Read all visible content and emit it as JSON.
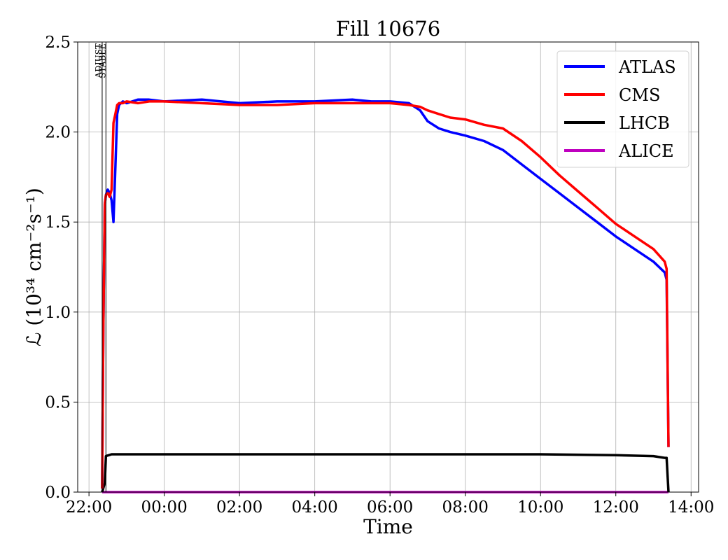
{
  "chart_data": {
    "type": "line",
    "title": "Fill 10676",
    "xlabel": "Time",
    "ylabel": "ℒ (10³⁴ cm⁻²s⁻¹)",
    "x_unit": "hours since 22:00",
    "xlim": [
      -0.3,
      16.2
    ],
    "ylim": [
      0,
      2.5
    ],
    "x_ticks": [
      {
        "label": "22:00",
        "value": 0
      },
      {
        "label": "00:00",
        "value": 2
      },
      {
        "label": "02:00",
        "value": 4
      },
      {
        "label": "04:00",
        "value": 6
      },
      {
        "label": "06:00",
        "value": 8
      },
      {
        "label": "08:00",
        "value": 10
      },
      {
        "label": "10:00",
        "value": 12
      },
      {
        "label": "12:00",
        "value": 14
      },
      {
        "label": "14:00",
        "value": 16
      }
    ],
    "y_ticks": [
      {
        "label": "0.0",
        "value": 0
      },
      {
        "label": "0.5",
        "value": 0.5
      },
      {
        "label": "1.0",
        "value": 1.0
      },
      {
        "label": "1.5",
        "value": 1.5
      },
      {
        "label": "2.0",
        "value": 2.0
      },
      {
        "label": "2.5",
        "value": 2.5
      }
    ],
    "grid": true,
    "legend_position": "top-right",
    "markers": [
      {
        "label": "ADJUST",
        "x": 0.35
      },
      {
        "label": "STABLE",
        "x": 0.45
      }
    ],
    "series": [
      {
        "name": "ATLAS",
        "color": "#0000ff",
        "x": [
          0.35,
          0.38,
          0.42,
          0.45,
          0.5,
          0.55,
          0.6,
          0.65,
          0.7,
          0.75,
          0.8,
          0.9,
          1.0,
          1.3,
          1.6,
          2.0,
          3.0,
          4.0,
          5.0,
          6.0,
          7.0,
          7.5,
          8.0,
          8.5,
          8.8,
          9.0,
          9.3,
          9.6,
          10.0,
          10.5,
          11.0,
          11.5,
          12.0,
          12.5,
          13.0,
          13.5,
          14.0,
          14.5,
          15.0,
          15.3,
          15.35,
          15.4
        ],
        "y": [
          0.02,
          0.9,
          1.6,
          1.65,
          1.68,
          1.66,
          1.62,
          1.5,
          1.8,
          2.1,
          2.15,
          2.17,
          2.16,
          2.18,
          2.18,
          2.17,
          2.18,
          2.16,
          2.17,
          2.17,
          2.18,
          2.17,
          2.17,
          2.16,
          2.12,
          2.06,
          2.02,
          2.0,
          1.98,
          1.95,
          1.9,
          1.82,
          1.74,
          1.66,
          1.58,
          1.5,
          1.42,
          1.35,
          1.28,
          1.22,
          1.18,
          0.25
        ]
      },
      {
        "name": "CMS",
        "color": "#ff0000",
        "x": [
          0.35,
          0.38,
          0.42,
          0.45,
          0.5,
          0.55,
          0.6,
          0.65,
          0.7,
          0.75,
          0.8,
          0.9,
          1.0,
          1.3,
          1.6,
          2.0,
          3.0,
          4.0,
          5.0,
          6.0,
          7.0,
          7.5,
          8.0,
          8.5,
          8.8,
          9.0,
          9.3,
          9.6,
          10.0,
          10.5,
          11.0,
          11.5,
          12.0,
          12.5,
          13.0,
          13.5,
          14.0,
          14.5,
          15.0,
          15.3,
          15.35,
          15.4
        ],
        "y": [
          0.02,
          0.9,
          1.6,
          1.65,
          1.66,
          1.64,
          1.68,
          2.05,
          2.1,
          2.15,
          2.16,
          2.16,
          2.17,
          2.16,
          2.17,
          2.17,
          2.16,
          2.15,
          2.15,
          2.16,
          2.16,
          2.16,
          2.16,
          2.15,
          2.14,
          2.12,
          2.1,
          2.08,
          2.07,
          2.04,
          2.02,
          1.95,
          1.86,
          1.76,
          1.67,
          1.58,
          1.49,
          1.42,
          1.35,
          1.28,
          1.24,
          0.25
        ]
      },
      {
        "name": "LHCB",
        "color": "#000000",
        "x": [
          0.35,
          0.42,
          0.45,
          0.6,
          1.0,
          2.0,
          4.0,
          6.0,
          8.0,
          10.0,
          12.0,
          14.0,
          15.0,
          15.3,
          15.35,
          15.4
        ],
        "y": [
          0.0,
          0.05,
          0.2,
          0.21,
          0.21,
          0.21,
          0.21,
          0.21,
          0.21,
          0.21,
          0.21,
          0.205,
          0.2,
          0.19,
          0.19,
          0.0
        ]
      },
      {
        "name": "ALICE",
        "color": "#bf00bf",
        "x": [
          0.35,
          15.4
        ],
        "y": [
          0.0,
          0.0
        ]
      }
    ]
  }
}
